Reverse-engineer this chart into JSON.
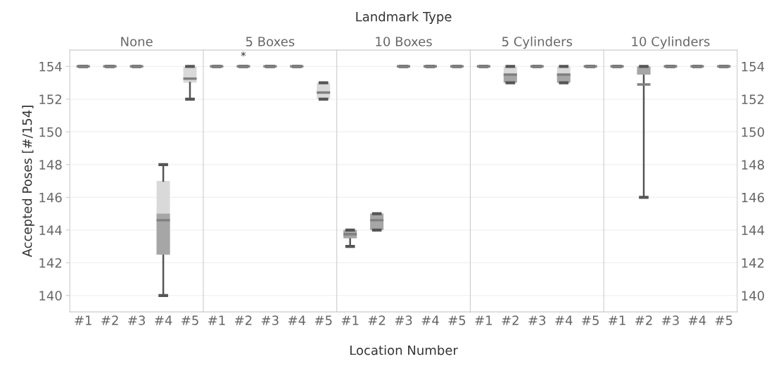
{
  "chart_data": [
    {
      "type": "box",
      "title": "None",
      "ylabel": "Accepted Poses [#/154]",
      "categories": [
        "#1",
        "#2",
        "#3",
        "#4",
        "#5"
      ],
      "ylim": [
        139,
        155
      ],
      "yticks": [
        140,
        142,
        144,
        146,
        148,
        150,
        152,
        154
      ],
      "grid": "y",
      "boxes": [
        {
          "low": 154,
          "q1": 154,
          "median": 154,
          "q3": 154,
          "high": 154,
          "mean": 154
        },
        {
          "low": 154,
          "q1": 154,
          "median": 154,
          "q3": 154,
          "high": 154,
          "mean": 154
        },
        {
          "low": 154,
          "q1": 154,
          "median": 154,
          "q3": 154,
          "high": 154,
          "mean": 154
        },
        {
          "low": 140,
          "q1": 142.5,
          "median": 145,
          "q3": 147,
          "high": 148,
          "mean": 144.6
        },
        {
          "low": 152,
          "q1": 153,
          "median": 153,
          "q3": 154,
          "high": 154,
          "mean": 153.25
        }
      ]
    },
    {
      "type": "box",
      "title": "5 Boxes",
      "tick_labels": "x",
      "annotations": [
        "*"
      ],
      "categories": [
        "#1",
        "#2",
        "#3",
        "#4",
        "#5"
      ],
      "ylim": [
        139,
        155
      ],
      "yticks": [
        140,
        142,
        144,
        146,
        148,
        150,
        152,
        154
      ],
      "grid": "y",
      "boxes": [
        {
          "low": 154,
          "q1": 154,
          "median": 154,
          "q3": 154,
          "high": 154,
          "mean": 154
        },
        {
          "low": 154,
          "q1": 154,
          "median": 154,
          "q3": 154,
          "high": 154,
          "mean": 154
        },
        {
          "low": 154,
          "q1": 154,
          "median": 154,
          "q3": 154,
          "high": 154,
          "mean": 154
        },
        {
          "low": 154,
          "q1": 154,
          "median": 154,
          "q3": 154,
          "high": 154,
          "mean": 154
        },
        {
          "low": 152,
          "q1": 152,
          "median": 152,
          "q3": 153,
          "high": 153,
          "mean": 152.4
        }
      ]
    },
    {
      "type": "box",
      "title": "10 Boxes",
      "xlabel": "Location Number",
      "annotations": [
        "Landmark Type"
      ],
      "tick_labels": "x",
      "categories": [
        "#1",
        "#2",
        "#3",
        "#4",
        "#5"
      ],
      "ylim": [
        139,
        155
      ],
      "yticks": [
        140,
        142,
        144,
        146,
        148,
        150,
        152,
        154
      ],
      "grid": "y",
      "boxes": [
        {
          "low": 143,
          "q1": 143.5,
          "median": 144,
          "q3": 144,
          "high": 144,
          "mean": 143.75
        },
        {
          "low": 144,
          "q1": 144,
          "median": 145,
          "q3": 145,
          "high": 145,
          "mean": 144.6
        },
        {
          "low": 154,
          "q1": 154,
          "median": 154,
          "q3": 154,
          "high": 154,
          "mean": 154
        },
        {
          "low": 154,
          "q1": 154,
          "median": 154,
          "q3": 154,
          "high": 154,
          "mean": 154
        },
        {
          "low": 154,
          "q1": 154,
          "median": 154,
          "q3": 154,
          "high": 154,
          "mean": 154
        }
      ]
    },
    {
      "type": "box",
      "title": "5 Cylinders",
      "tick_labels": "x",
      "categories": [
        "#1",
        "#2",
        "#3",
        "#4",
        "#5"
      ],
      "ylim": [
        139,
        155
      ],
      "yticks": [
        140,
        142,
        144,
        146,
        148,
        150,
        152,
        154
      ],
      "grid": "y",
      "boxes": [
        {
          "low": 154,
          "q1": 154,
          "median": 154,
          "q3": 154,
          "high": 154,
          "mean": 154
        },
        {
          "low": 153,
          "q1": 153,
          "median": 153.5,
          "q3": 154,
          "high": 154,
          "mean": 153.5
        },
        {
          "low": 154,
          "q1": 154,
          "median": 154,
          "q3": 154,
          "high": 154,
          "mean": 154
        },
        {
          "low": 153,
          "q1": 153,
          "median": 153.5,
          "q3": 154,
          "high": 154,
          "mean": 153.5
        },
        {
          "low": 154,
          "q1": 154,
          "median": 154,
          "q3": 154,
          "high": 154,
          "mean": 154
        }
      ]
    },
    {
      "type": "box",
      "title": "10 Cylinders",
      "categories": [
        "#1",
        "#2",
        "#3",
        "#4",
        "#5"
      ],
      "ylim": [
        139,
        155
      ],
      "yticks": [
        140,
        142,
        144,
        146,
        148,
        150,
        152,
        154
      ],
      "grid": "y",
      "boxes": [
        {
          "low": 154,
          "q1": 154,
          "median": 154,
          "q3": 154,
          "high": 154,
          "mean": 154
        },
        {
          "low": 146,
          "q1": 153.5,
          "median": 154,
          "q3": 154,
          "high": 154,
          "mean": 152.9
        },
        {
          "low": 154,
          "q1": 154,
          "median": 154,
          "q3": 154,
          "high": 154,
          "mean": 154
        },
        {
          "low": 154,
          "q1": 154,
          "median": 154,
          "q3": 154,
          "high": 154,
          "mean": 154
        },
        {
          "low": 154,
          "q1": 154,
          "median": 154,
          "q3": 154,
          "high": 154,
          "mean": 154
        }
      ]
    }
  ]
}
